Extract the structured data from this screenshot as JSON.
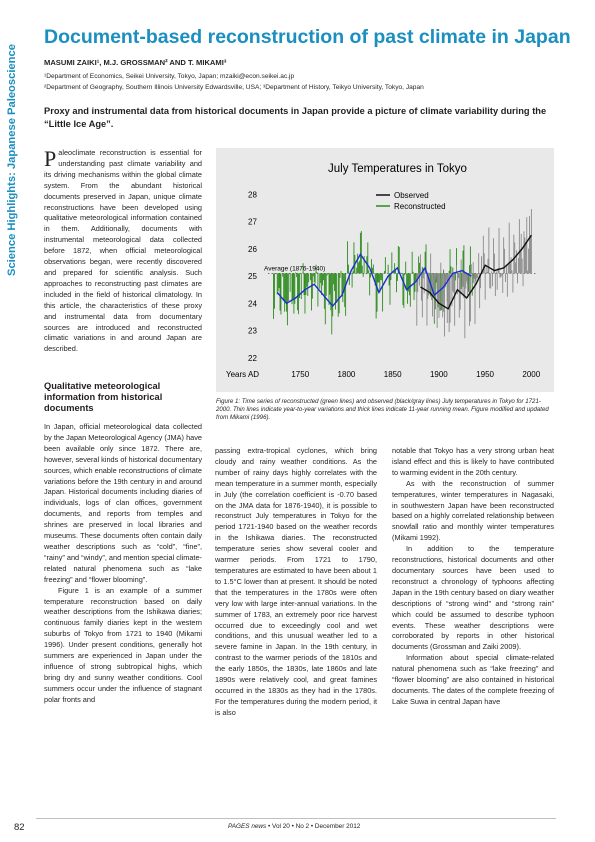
{
  "side_label": "Science Highlights: Japanese Paleoscience",
  "title": "Document-based reconstruction of past climate in Japan",
  "authors": "MASUMI ZAIKI¹, M.J. GROSSMAN² AND T. MIKAMI³",
  "affiliations": [
    "¹Department of Economics, Seikei University, Tokyo, Japan; mzaiki@econ.seikei.ac.jp",
    "²Department of Geography, Southern Illinois University Edwardsville, USA; ³Department of History, Teikyo University, Tokyo, Japan"
  ],
  "lead": "Proxy and instrumental data from historical documents in Japan provide a picture of climate variability during the “Little Ice Age”.",
  "intro": {
    "dropcap": "P",
    "text": "aleoclimate reconstruction is essential for understanding past climate variability and its driving mechanisms within the global climate system. From the abundant historical documents preserved in Japan, unique climate reconstructions have been developed using qualitative meteorological information contained in them. Additionally, documents with instrumental meteorological data collected before 1872, when official meteorological observations began, were recently discovered and prepared for scientific analysis. Such approaches to reconstructing past climates are included in the field of historical climatology. In this article, the characteristics of these proxy and instrumental data from documentary sources are introduced and reconstructed climatic variations in and around Japan are described."
  },
  "section_heading": "Qualitative meteorological information from historical documents",
  "col_a": [
    "In Japan, official meteorological data collected by the Japan Meteorological Agency (JMA) have been available only since 1872. There are, however, several kinds of historical documentary sources, which enable reconstructions of climate variations before the 19th century in and around Japan. Historical documents including diaries of individuals, logs of clan offices, government documents, and reports from temples and shrines are preserved in local libraries and museums. These documents often contain daily weather descriptions such as “cold”, “fine”, “rainy” and “windy”, and mention special climate-related natural phenomena such as “lake freezing” and “flower blooming”.",
    "Figure 1 is an example of a summer temperature reconstruction based on daily weather descriptions from the Ishikawa diaries; continuous family diaries kept in the western suburbs of Tokyo from 1721 to 1940 (Mikami 1996). Under present conditions, generally hot summers are experienced in Japan under the influence of strong subtropical highs, which bring dry and sunny weather conditions. Cool summers occur under the influence of stagnant polar fronts and"
  ],
  "col_b": [
    "passing extra-tropical cyclones, which bring cloudy and rainy weather conditions. As the number of rainy days highly correlates with the mean temperature in a summer month, especially in July (the correlation coefficient is -0.70 based on the JMA data for 1876-1940), it is possible to reconstruct July temperatures in Tokyo for the period 1721-1940 based on the weather records in the Ishikawa diaries. The reconstructed temperature series show several cooler and warmer periods. From 1721 to 1790, temperatures are estimated to have been about 1 to 1.5°C lower than at present. It should be noted that the temperatures in the 1780s were often very low with large inter-annual variations. In the summer of 1783, an extremely poor rice harvest occurred due to exceedingly cool and wet conditions, and this unusual weather led to a severe famine in Japan. In the 19th century, in contrast to the warmer periods of the 1810s and the early 1850s, the 1830s, late 1860s and late 1890s were relatively cool, and great famines occurred in the 1830s as they had in the 1780s. For the temperatures during the modern period, it is also"
  ],
  "col_c": [
    "notable that Tokyo has a very strong urban heat island effect and this is likely to have contributed to warming evident in the 20th century.",
    "As with the reconstruction of summer temperatures, winter temperatures in Nagasaki, in southwestern Japan have been reconstructed based on a highly correlated relationship between snowfall ratio and monthly winter temperatures (Mikami 1992).",
    "In addition to the temperature reconstructions, historical documents and other documentary sources have been used to reconstruct a chronology of typhoons affecting Japan in the 19th century based on diary weather descriptions of “strong wind” and “strong rain” which could be assumed to describe typhoon events. These weather descriptions were corroborated by reports in other historical documents (Grossman and Zaiki 2009).",
    "Information about special climate-related natural phenomena such as “lake freezing” and “flower blooming” are also contained in historical documents. The dates of the complete freezing of Lake Suwa in central Japan have"
  ],
  "figure_caption": "Figure 1: Time series of reconstructed (green lines) and observed (black/gray lines) July temperatures in Tokyo for 1721-2000. Thin lines indicate year-to-year variations and thick lines indicate 11-year running mean. Figure modified and updated from Mikami (1996).",
  "page_number": "82",
  "footer": {
    "journal": "PAGES news",
    "issue": " • Vol 20 • No 2 • December 2012"
  },
  "colors": {
    "accent": "#1b8fbf",
    "reconstructed": "#2e8b1f",
    "observed": "#111111",
    "mean_line": "#1a2fd0"
  },
  "chart_data": {
    "type": "line",
    "title": "July Temperatures in Tokyo",
    "xlabel": "Years AD",
    "ylabel": "",
    "x_ticks": [
      "1750",
      "1800",
      "1850",
      "1900",
      "1950",
      "2000"
    ],
    "y_ticks": [
      "28",
      "27",
      "26",
      "25",
      "24",
      "23",
      "22"
    ],
    "xlim": [
      1715,
      2005
    ],
    "ylim": [
      21.7,
      28.6
    ],
    "grid": false,
    "legend": [
      "Observed",
      "Reconstructed"
    ],
    "annotation": "Average (1876-1940)",
    "average_value": 25.1,
    "series": [
      {
        "name": "Reconstructed",
        "x": [
          1725,
          1735,
          1745,
          1755,
          1765,
          1775,
          1785,
          1795,
          1805,
          1815,
          1825,
          1835,
          1845,
          1855,
          1865,
          1875,
          1885,
          1895,
          1905,
          1915,
          1925,
          1935
        ],
        "values": [
          24.4,
          24.0,
          24.2,
          24.5,
          24.7,
          24.3,
          23.9,
          24.3,
          25.2,
          25.8,
          25.3,
          24.4,
          25.0,
          25.3,
          24.5,
          24.8,
          25.3,
          24.3,
          24.6,
          25.1,
          25.2,
          25.0
        ]
      },
      {
        "name": "Observed",
        "x": [
          1880,
          1890,
          1900,
          1910,
          1920,
          1930,
          1940,
          1950,
          1960,
          1970,
          1980,
          1990,
          2000
        ],
        "values": [
          24.6,
          24.4,
          24.0,
          23.8,
          24.5,
          24.2,
          24.7,
          25.4,
          25.2,
          25.3,
          25.6,
          26.0,
          26.5
        ]
      }
    ]
  }
}
